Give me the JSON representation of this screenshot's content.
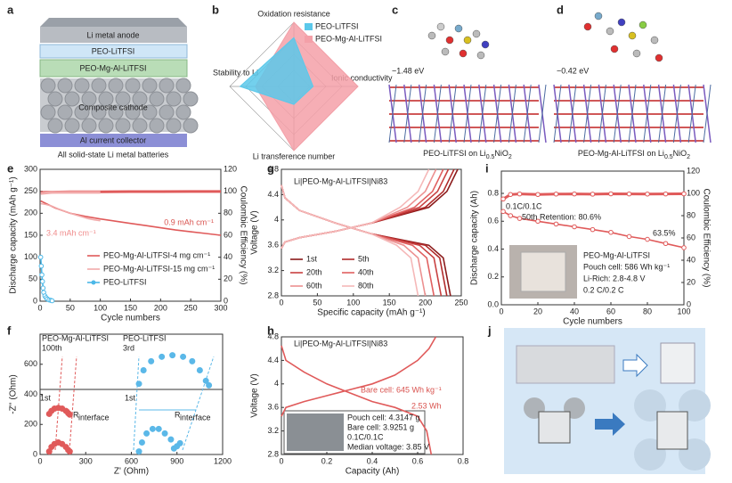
{
  "panel_labels": [
    "a",
    "b",
    "c",
    "d",
    "e",
    "f",
    "g",
    "h",
    "i",
    "j"
  ],
  "diagram_a": {
    "layers": [
      "Li metal anode",
      "PEO-LiTFSI",
      "PEO-Mg-Al-LiTFSI",
      "Composite cathode",
      "Al current collector"
    ],
    "caption": "All solid-state Li metal batteries"
  },
  "diagram_c": {
    "energy": "−1.48 eV",
    "caption": [
      "PEO-LiTFSI on Li",
      "0.5",
      "NiO",
      "2"
    ]
  },
  "diagram_d": {
    "energy": "−0.42 eV",
    "caption": [
      "PEO-Mg-Al-LiTFSI on Li",
      "0.5",
      "NiO",
      "2"
    ]
  },
  "chart_data": [
    {
      "type": "radar",
      "axes": [
        "Oxidation resistance",
        "Ionic conductivity",
        "Li transference number",
        "Stability to Li"
      ],
      "rlim": [
        0,
        5
      ],
      "series": [
        {
          "name": "PEO-LiTFSI",
          "color": "#5bc8ea",
          "values": [
            3.8,
            1.5,
            1.4,
            4.2
          ]
        },
        {
          "name": "PEO-Mg-Al-LiTFSI",
          "color": "#f4a0a8",
          "values": [
            5,
            5,
            5,
            3
          ]
        }
      ]
    },
    {
      "type": "line",
      "xlabel": "Cycle numbers",
      "ylabel": "Discharge capacity (mAh g⁻¹)",
      "y2label": "Coulombic Efficiency (%)",
      "xlim": [
        0,
        300
      ],
      "xticks": [
        0,
        50,
        100,
        150,
        200,
        250,
        300
      ],
      "ylim": [
        0,
        300
      ],
      "yticks": [
        0,
        50,
        100,
        150,
        200,
        250,
        300
      ],
      "y2lim": [
        0,
        120
      ],
      "y2ticks": [
        0,
        20,
        40,
        60,
        80,
        100,
        120
      ],
      "annotations": [
        "0.9 mAh cm⁻¹",
        "3.4 mAh cm⁻¹"
      ],
      "series": [
        {
          "name": "PEO-Mg-Al-LiTFSI-4 mg cm⁻¹",
          "color": "#e05a5a",
          "x": [
            1,
            25,
            50,
            75,
            100,
            125,
            150,
            175,
            200,
            225,
            250,
            275,
            300
          ],
          "values": [
            228,
            212,
            200,
            193,
            187,
            182,
            177,
            172,
            167,
            162,
            158,
            154,
            150
          ]
        },
        {
          "name": "PEO-Mg-Al-LiTFSI-15 mg cm⁻¹",
          "color": "#f2aaaa",
          "x": [
            1,
            10,
            20,
            30,
            40,
            50,
            60,
            70,
            80,
            90,
            100
          ],
          "values": [
            222,
            220,
            216,
            210,
            205,
            200,
            196,
            192,
            188,
            185,
            183
          ]
        },
        {
          "name": "PEO-LiTFSI",
          "color": "#4bb8e8",
          "marker": true,
          "x": [
            1,
            2,
            3,
            4,
            5,
            6,
            8,
            10,
            12,
            15,
            18,
            20
          ],
          "values": [
            100,
            80,
            60,
            45,
            30,
            20,
            12,
            8,
            5,
            3,
            2,
            1
          ]
        },
        {
          "color": "#e05a5a",
          "axis": "y2",
          "x": [
            1,
            50,
            100,
            150,
            200,
            250,
            300
          ],
          "values": [
            99,
            99.5,
            99.6,
            99.7,
            99.7,
            99.8,
            99.8
          ]
        },
        {
          "color": "#f2aaaa",
          "axis": "y2",
          "x": [
            1,
            20,
            40,
            60,
            80,
            100
          ],
          "values": [
            98,
            99,
            99,
            99,
            99,
            99
          ]
        }
      ]
    },
    {
      "type": "line",
      "title": "Li|PEO-Mg-Al-LiTFSI|Ni83",
      "xlabel": "Specific capacity (mAh g⁻¹)",
      "ylabel": "Voltage (V)",
      "xlim": [
        0,
        250
      ],
      "xticks": [
        0,
        50,
        100,
        150,
        200,
        250
      ],
      "ylim": [
        2.8,
        4.8
      ],
      "yticks": [
        2.8,
        3.2,
        3.6,
        4,
        4.4,
        4.8
      ],
      "series": [
        {
          "name": "1st",
          "color": "#8b1a1a",
          "x": [
            0,
            5,
            25,
            75,
            125,
            205,
            230,
            245,
            null,
            0,
            5,
            25,
            75,
            125,
            205,
            225,
            235
          ],
          "values": [
            3.55,
            3.65,
            3.72,
            3.82,
            3.95,
            4.2,
            4.45,
            4.8,
            null,
            4.55,
            4.35,
            4.15,
            3.95,
            3.78,
            3.6,
            3.4,
            2.8
          ]
        },
        {
          "name": "5th",
          "color": "#b02a2a",
          "x": [
            0,
            5,
            25,
            75,
            125,
            200,
            225,
            240,
            null,
            0,
            5,
            25,
            75,
            125,
            200,
            220,
            230
          ],
          "values": [
            3.55,
            3.65,
            3.72,
            3.82,
            3.95,
            4.2,
            4.45,
            4.8,
            null,
            4.55,
            4.35,
            4.15,
            3.95,
            3.78,
            3.6,
            3.4,
            2.8
          ]
        },
        {
          "name": "20th",
          "color": "#c84040",
          "x": [
            0,
            5,
            25,
            75,
            125,
            192,
            217,
            232,
            null,
            0,
            5,
            25,
            75,
            125,
            192,
            212,
            222
          ],
          "values": [
            3.55,
            3.65,
            3.72,
            3.82,
            3.95,
            4.2,
            4.45,
            4.8,
            null,
            4.55,
            4.35,
            4.15,
            3.95,
            3.78,
            3.6,
            3.4,
            2.8
          ]
        },
        {
          "name": "40th",
          "color": "#e06060",
          "x": [
            0,
            5,
            25,
            75,
            125,
            185,
            210,
            225,
            null,
            0,
            5,
            25,
            75,
            125,
            182,
            202,
            212
          ],
          "values": [
            3.55,
            3.65,
            3.72,
            3.82,
            3.95,
            4.2,
            4.45,
            4.8,
            null,
            4.55,
            4.35,
            4.15,
            3.95,
            3.78,
            3.6,
            3.4,
            2.8
          ]
        },
        {
          "name": "60th",
          "color": "#ec9090",
          "x": [
            0,
            5,
            25,
            75,
            125,
            175,
            200,
            215,
            null,
            0,
            5,
            25,
            75,
            125,
            170,
            190,
            200
          ],
          "values": [
            3.55,
            3.65,
            3.72,
            3.82,
            3.95,
            4.2,
            4.45,
            4.8,
            null,
            4.55,
            4.35,
            4.15,
            3.95,
            3.78,
            3.6,
            3.4,
            2.8
          ]
        },
        {
          "name": "80th",
          "color": "#f5b8b8",
          "x": [
            0,
            5,
            25,
            75,
            125,
            165,
            190,
            205,
            null,
            0,
            5,
            25,
            75,
            125,
            160,
            180,
            190
          ],
          "values": [
            3.55,
            3.65,
            3.72,
            3.82,
            3.95,
            4.2,
            4.45,
            4.8,
            null,
            4.55,
            4.35,
            4.15,
            3.95,
            3.78,
            3.6,
            3.4,
            2.8
          ]
        }
      ]
    },
    {
      "type": "line",
      "xlabel": "Cycle numbers",
      "ylabel": "Discharge capacity (Ah)",
      "y2label": "Coulombic Efficiency (%)",
      "xlim": [
        0,
        100
      ],
      "xticks": [
        0,
        20,
        40,
        60,
        80,
        100
      ],
      "ylim": [
        0,
        0.96
      ],
      "yticks": [
        {
          "value": 0,
          "label": "0.0"
        },
        0.2,
        0.4,
        0.6,
        0.8
      ],
      "y2lim": [
        0,
        120
      ],
      "y2ticks": [
        0,
        20,
        40,
        60,
        80,
        100,
        120
      ],
      "annotations": [
        "0.1C/0.1C",
        "50th Retention: 80.6%",
        "63.5%",
        "PEO-Mg-Al-LiTFSI",
        "Pouch cell: 586 Wh kg⁻¹",
        "Li-Rich: 2.8-4.8 V",
        "0.2 C/0.2 C"
      ],
      "series": [
        {
          "color": "#e05a5a",
          "marker": true,
          "x": [
            1,
            5,
            10,
            20,
            30,
            40,
            50,
            60,
            70,
            80,
            90,
            100
          ],
          "values": [
            0.67,
            0.64,
            0.62,
            0.6,
            0.58,
            0.56,
            0.54,
            0.52,
            0.49,
            0.47,
            0.44,
            0.41
          ]
        },
        {
          "color": "#e05a5a",
          "marker": true,
          "axis": "y2",
          "x": [
            1,
            5,
            10,
            20,
            30,
            40,
            50,
            60,
            70,
            80,
            90,
            100
          ],
          "values": [
            95,
            99,
            99.5,
            99,
            99.4,
            99.5,
            99.3,
            99.6,
            99.5,
            99.4,
            99.5,
            99.6
          ]
        }
      ]
    },
    {
      "type": "scatter",
      "xlabel": "Z' (Ohm)",
      "ylabel": "-Z'' (Ohm)",
      "xlim": [
        0,
        1200
      ],
      "xticks": [
        0,
        300,
        600,
        900,
        1200
      ],
      "ylim": [
        0,
        800
      ],
      "yticks": [
        0,
        200,
        400,
        600
      ],
      "annotations": [
        "PEO-Mg-Al-LiTFSI",
        "100th",
        "PEO-LiTFSI",
        "3rd",
        "1st",
        "1st",
        "R",
        "interface",
        "R",
        "interface"
      ],
      "series": [
        {
          "color": "#e05a5a",
          "x": [
            60,
            75,
            95,
            120,
            145,
            170,
            185,
            195
          ],
          "values": [
            270,
            290,
            305,
            310,
            305,
            290,
            275,
            265
          ]
        },
        {
          "color": "#e05a5a",
          "x": [
            60,
            75,
            95,
            120,
            145,
            170,
            185,
            195
          ],
          "values": [
            20,
            50,
            70,
            80,
            70,
            50,
            30,
            20
          ]
        },
        {
          "color": "#5bb8e8",
          "x": [
            650,
            680,
            730,
            800,
            870,
            940,
            1000,
            1050,
            1090,
            1110
          ],
          "values": [
            470,
            560,
            620,
            650,
            660,
            650,
            620,
            560,
            490,
            460
          ]
        },
        {
          "color": "#5bb8e8",
          "x": [
            650,
            670,
            700,
            740,
            780,
            820,
            860,
            880,
            900,
            920
          ],
          "values": [
            20,
            80,
            140,
            170,
            170,
            140,
            100,
            40,
            55,
            75
          ]
        }
      ]
    },
    {
      "type": "line",
      "title": "Li|PEO-Mg-Al-LiTFSI|Ni83",
      "xlabel": "Capacity (Ah)",
      "ylabel": "Voltage (V)",
      "xlim": [
        0,
        0.8
      ],
      "xticks": [
        0,
        0.2,
        0.4,
        0.6,
        0.8
      ],
      "ylim": [
        2.8,
        4.8
      ],
      "yticks": [
        2.8,
        3.2,
        3.6,
        4,
        4.4,
        4.8
      ],
      "annotations": [
        "Bare cell: 645 Wh kg⁻¹",
        "2.53 Wh",
        "Pouch cell: 4.3147 g",
        "Bare cell:    3.9251 g",
        "0.1C/0.1C",
        "Median voltage: 3.85 V"
      ],
      "series": [
        {
          "color": "#e05a5a",
          "x": [
            0,
            0.02,
            0.1,
            0.2,
            0.3,
            0.4,
            0.5,
            0.6,
            0.65,
            0.68,
            null,
            0,
            0.02,
            0.1,
            0.2,
            0.3,
            0.4,
            0.5,
            0.6,
            0.64,
            0.66
          ],
          "values": [
            3.45,
            3.6,
            3.7,
            3.8,
            3.9,
            4.0,
            4.15,
            4.4,
            4.6,
            4.8,
            null,
            4.65,
            4.4,
            4.2,
            4.0,
            3.85,
            3.7,
            3.6,
            3.45,
            3.2,
            2.8
          ]
        }
      ]
    }
  ]
}
